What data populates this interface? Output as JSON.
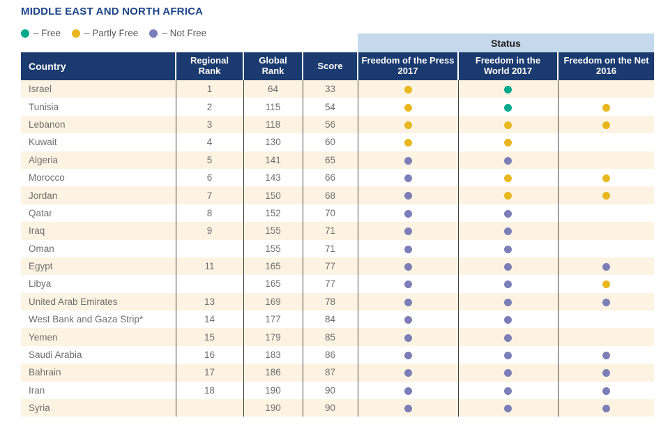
{
  "title": "MIDDLE EAST AND NORTH AFRICA",
  "legend": {
    "items": [
      {
        "label": "– Free",
        "status": "free"
      },
      {
        "label": "– Partly Free",
        "status": "partly-free"
      },
      {
        "label": "– Not Free",
        "status": "not-free"
      }
    ]
  },
  "colors": {
    "free": "#00A98B",
    "partly-free": "#E8B71F",
    "not-free": "#7B7EB7",
    "header_bg": "#1B3A6F",
    "title_text": "#1B4489",
    "status_band_bg": "#C5D9EC",
    "row_stripe_bg": "#FDF3E2",
    "body_text": "#6E6E6E"
  },
  "table": {
    "status_group_header": "Status",
    "columns": [
      "Country",
      "Regional Rank",
      "Global Rank",
      "Score",
      "Freedom of the Press 2017",
      "Freedom in the World 2017",
      "Freedom on the Net 2016"
    ],
    "rows": [
      {
        "country": "Israel",
        "regional_rank": "1",
        "global_rank": "64",
        "score": "33",
        "press_2017": "partly-free",
        "world_2017": "free",
        "net_2016": ""
      },
      {
        "country": "Tunisia",
        "regional_rank": "2",
        "global_rank": "115",
        "score": "54",
        "press_2017": "partly-free",
        "world_2017": "free",
        "net_2016": "partly-free"
      },
      {
        "country": "Lebanon",
        "regional_rank": "3",
        "global_rank": "118",
        "score": "56",
        "press_2017": "partly-free",
        "world_2017": "partly-free",
        "net_2016": "partly-free"
      },
      {
        "country": "Kuwait",
        "regional_rank": "4",
        "global_rank": "130",
        "score": "60",
        "press_2017": "partly-free",
        "world_2017": "partly-free",
        "net_2016": ""
      },
      {
        "country": "Algeria",
        "regional_rank": "5",
        "global_rank": "141",
        "score": "65",
        "press_2017": "not-free",
        "world_2017": "not-free",
        "net_2016": ""
      },
      {
        "country": "Morocco",
        "regional_rank": "6",
        "global_rank": "143",
        "score": "66",
        "press_2017": "not-free",
        "world_2017": "partly-free",
        "net_2016": "partly-free"
      },
      {
        "country": "Jordan",
        "regional_rank": "7",
        "global_rank": "150",
        "score": "68",
        "press_2017": "not-free",
        "world_2017": "partly-free",
        "net_2016": "partly-free"
      },
      {
        "country": "Qatar",
        "regional_rank": "8",
        "global_rank": "152",
        "score": "70",
        "press_2017": "not-free",
        "world_2017": "not-free",
        "net_2016": ""
      },
      {
        "country": "Iraq",
        "regional_rank": "9",
        "global_rank": "155",
        "score": "71",
        "press_2017": "not-free",
        "world_2017": "not-free",
        "net_2016": ""
      },
      {
        "country": "Oman",
        "regional_rank": "",
        "global_rank": "155",
        "score": "71",
        "press_2017": "not-free",
        "world_2017": "not-free",
        "net_2016": ""
      },
      {
        "country": "Egypt",
        "regional_rank": "11",
        "global_rank": "165",
        "score": "77",
        "press_2017": "not-free",
        "world_2017": "not-free",
        "net_2016": "not-free"
      },
      {
        "country": "Libya",
        "regional_rank": "",
        "global_rank": "165",
        "score": "77",
        "press_2017": "not-free",
        "world_2017": "not-free",
        "net_2016": "partly-free"
      },
      {
        "country": "United Arab Emirates",
        "regional_rank": "13",
        "global_rank": "169",
        "score": "78",
        "press_2017": "not-free",
        "world_2017": "not-free",
        "net_2016": "not-free"
      },
      {
        "country": "West Bank and Gaza Strip*",
        "regional_rank": "14",
        "global_rank": "177",
        "score": "84",
        "press_2017": "not-free",
        "world_2017": "not-free",
        "net_2016": ""
      },
      {
        "country": "Yemen",
        "regional_rank": "15",
        "global_rank": "179",
        "score": "85",
        "press_2017": "not-free",
        "world_2017": "not-free",
        "net_2016": ""
      },
      {
        "country": "Saudi Arabia",
        "regional_rank": "16",
        "global_rank": "183",
        "score": "86",
        "press_2017": "not-free",
        "world_2017": "not-free",
        "net_2016": "not-free"
      },
      {
        "country": "Bahrain",
        "regional_rank": "17",
        "global_rank": "186",
        "score": "87",
        "press_2017": "not-free",
        "world_2017": "not-free",
        "net_2016": "not-free"
      },
      {
        "country": "Iran",
        "regional_rank": "18",
        "global_rank": "190",
        "score": "90",
        "press_2017": "not-free",
        "world_2017": "not-free",
        "net_2016": "not-free"
      },
      {
        "country": "Syria",
        "regional_rank": "",
        "global_rank": "190",
        "score": "90",
        "press_2017": "not-free",
        "world_2017": "not-free",
        "net_2016": "not-free"
      }
    ]
  }
}
